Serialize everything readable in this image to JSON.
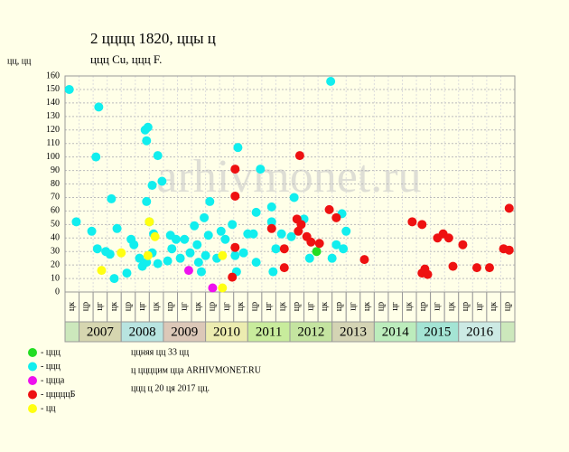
{
  "chart_data": {
    "type": "scatter",
    "title": "2 цццц 1820, ццы ц",
    "subtitle": "ццц Cu, ццц F.",
    "y_label": "цц, цц",
    "watermark": "arhivmonet.ru",
    "notes": [
      "ццняя цц 33 цц",
      "ц ццццим цца ARHIVMONET.RU",
      "ццц ц 20 ця 2017 цц."
    ],
    "ylim": [
      0,
      160
    ],
    "yticks": [
      0,
      10,
      20,
      30,
      40,
      50,
      60,
      70,
      80,
      90,
      100,
      110,
      120,
      130,
      140,
      150,
      160
    ],
    "xlim": [
      0,
      32
    ],
    "grid": true,
    "x_labels": [
      "цк",
      "цр",
      "цг",
      "цк",
      "цр",
      "цг",
      "цк",
      "цр",
      "цг",
      "цк",
      "цр",
      "цг",
      "цк",
      "цр",
      "цг",
      "цк",
      "цр",
      "цг",
      "цк",
      "цр",
      "цг",
      "цк",
      "цр",
      "цг",
      "цк",
      "цр",
      "цг",
      "цк",
      "цр",
      "цг",
      "цк",
      "цр"
    ],
    "years": [
      "2007",
      "2008",
      "2009",
      "2010",
      "2011",
      "2012",
      "2013",
      "2014",
      "2015",
      "2016"
    ],
    "year_colors": [
      "#d6d6b0",
      "#b8e4e0",
      "#dcc8b8",
      "#ececb0",
      "#c8ec9c",
      "#c4e4a0",
      "#d4d4b4",
      "#bcecbc",
      "#a4e4d4",
      "#cceae4"
    ],
    "series": [
      {
        "name": "- ццц",
        "color": "#22dd22",
        "x": [
          17.9
        ],
        "values": [
          30
        ]
      },
      {
        "name": "- ццц",
        "color": "#11eeee",
        "x": [
          0.3,
          0.8,
          1.9,
          2.2,
          2.4,
          2.3,
          2.9,
          3.3,
          3.2,
          3.5,
          3.7,
          4.4,
          4.7,
          4.9,
          5.3,
          5.5,
          5.7,
          5.9,
          5.8,
          5.8,
          6.2,
          6.6,
          6.9,
          6.0,
          6.3,
          5.8,
          6.2,
          6.6,
          7.3,
          7.6,
          7.5,
          7.9,
          8.2,
          8.5,
          8.9,
          9.2,
          9.4,
          9.5,
          9.7,
          9.9,
          10.2,
          10.3,
          10.0,
          10.8,
          11.1,
          11.4,
          11.9,
          12.1,
          12.2,
          12.3,
          12.7,
          13.0,
          13.4,
          13.6,
          13.6,
          13.9,
          14.7,
          14.8,
          14.7,
          15.0,
          15.4,
          16.1,
          16.3,
          17.0,
          17.4,
          18.9,
          19.0,
          19.3,
          19.7,
          19.8,
          20.0
        ],
        "values": [
          150,
          52,
          45,
          100,
          137,
          32,
          30,
          69,
          28,
          10,
          47,
          14,
          39,
          35,
          25,
          19,
          120,
          122,
          112,
          67,
          79,
          101,
          82,
          52,
          43,
          22,
          29,
          21,
          23,
          32,
          42,
          39,
          25,
          39,
          29,
          49,
          35,
          22,
          15,
          55,
          42,
          67,
          27,
          25,
          45,
          39,
          50,
          27,
          15,
          107,
          29,
          43,
          43,
          59,
          22,
          91,
          52,
          15,
          63,
          32,
          43,
          41,
          70,
          54,
          25,
          156,
          25,
          35,
          58,
          32,
          45
        ]
      },
      {
        "name": "- цццa",
        "color": "#ee11ee",
        "x": [
          8.8,
          10.5
        ],
        "values": [
          16,
          3
        ]
      },
      {
        "name": "- цццццБ",
        "color": "#ee1111",
        "x": [
          12.1,
          12.1,
          12.1,
          11.9,
          14.7,
          15.6,
          15.6,
          16.7,
          16.5,
          16.6,
          16.8,
          17.2,
          17.5,
          18.1,
          18.8,
          19.3,
          21.3,
          24.7,
          25.4,
          25.4,
          25.6,
          25.8,
          26.5,
          26.9,
          27.3,
          27.6,
          28.3,
          29.3,
          30.2,
          31.2,
          31.6,
          31.6
        ],
        "values": [
          91,
          71,
          33,
          11,
          47,
          32,
          18,
          101,
          54,
          45,
          50,
          41,
          37,
          36,
          61,
          55,
          24,
          52,
          50,
          14,
          17,
          13,
          40,
          43,
          40,
          19,
          35,
          18,
          18,
          32,
          31,
          62
        ]
      },
      {
        "name": "- цц",
        "color": "#ffff11",
        "x": [
          2.6,
          4.0,
          5.9,
          6.4,
          11.2,
          11.2,
          6.0
        ],
        "values": [
          16,
          29,
          27,
          41,
          27,
          3,
          52
        ]
      }
    ]
  }
}
